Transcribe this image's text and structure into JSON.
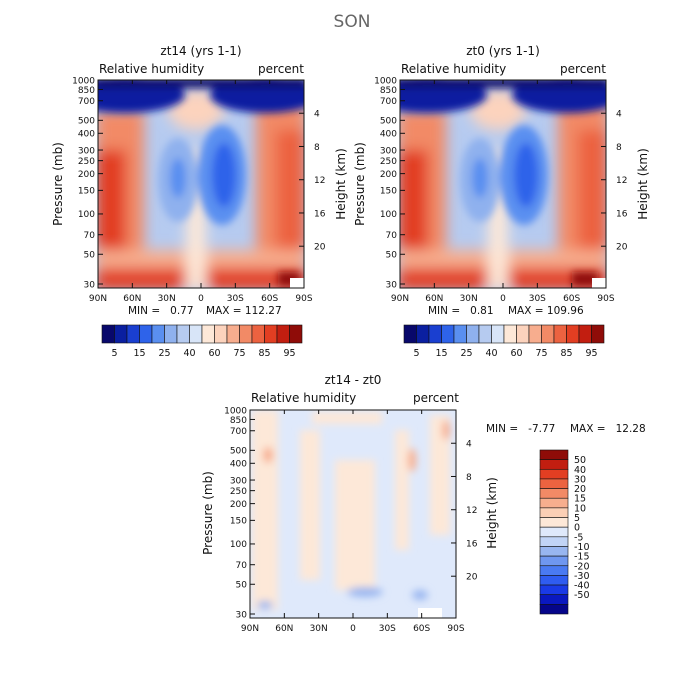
{
  "suptitle": "SON",
  "colors": {
    "blues": [
      "#08086b",
      "#0a1fa0",
      "#1a3fd0",
      "#2e63ea",
      "#5a8ff0",
      "#8fb1ee",
      "#b6cbf0",
      "#d8e5f8"
    ],
    "reds": [
      "#fde8d8",
      "#fcd3bd",
      "#f7ad8e",
      "#f28a66",
      "#ec6240",
      "#e23e22",
      "#c21e10",
      "#8f0c08"
    ],
    "diff_neg": [
      "#05058a",
      "#0a18c0",
      "#1a3ae6",
      "#2f5cf0",
      "#4a7af2",
      "#6f97f0",
      "#98b6f0",
      "#c1d4f6",
      "#dfe9fb"
    ],
    "diff_pos": [
      "#fde8d8",
      "#fbcfb5",
      "#f7ae8e",
      "#f28a66",
      "#ec6340",
      "#e23e22",
      "#c21e10",
      "#8f0c08"
    ]
  },
  "chart_data": [
    {
      "type": "heatmap",
      "title": "zt14 (yrs 1-1)",
      "left_label": "Relative humidity",
      "right_label": "percent",
      "ylabel": "Pressure (mb)",
      "ylabel_right": "Height (km)",
      "x_ticks": [
        "90N",
        "60N",
        "30N",
        "0",
        "30S",
        "60S",
        "90S"
      ],
      "y_ticks": [
        "1000",
        "850",
        "700",
        "500",
        "400",
        "300",
        "250",
        "200",
        "150",
        "100",
        "70",
        "50",
        "30"
      ],
      "height_ticks": [
        "4",
        "8",
        "12",
        "16",
        "20"
      ],
      "min_text": "MIN =   0.77",
      "max_text": "MAX = 112.27",
      "colorbar_labels": [
        "5",
        "15",
        "25",
        "40",
        "60",
        "75",
        "85",
        "95"
      ]
    },
    {
      "type": "heatmap",
      "title": "zt0 (yrs 1-1)",
      "left_label": "Relative humidity",
      "right_label": "percent",
      "ylabel": "Pressure (mb)",
      "ylabel_right": "Height (km)",
      "x_ticks": [
        "90N",
        "60N",
        "30N",
        "0",
        "30S",
        "60S",
        "90S"
      ],
      "y_ticks": [
        "1000",
        "850",
        "700",
        "500",
        "400",
        "300",
        "250",
        "200",
        "150",
        "100",
        "70",
        "50",
        "30"
      ],
      "height_ticks": [
        "4",
        "8",
        "12",
        "16",
        "20"
      ],
      "min_text": "MIN =   0.81",
      "max_text": "MAX = 109.96",
      "colorbar_labels": [
        "5",
        "15",
        "25",
        "40",
        "60",
        "75",
        "85",
        "95"
      ]
    },
    {
      "type": "heatmap",
      "title": "zt14 - zt0",
      "left_label": "Relative humidity",
      "right_label": "percent",
      "ylabel": "Pressure (mb)",
      "ylabel_right": "Height (km)",
      "x_ticks": [
        "90N",
        "60N",
        "30N",
        "0",
        "30S",
        "60S",
        "90S"
      ],
      "y_ticks": [
        "1000",
        "850",
        "700",
        "500",
        "400",
        "300",
        "250",
        "200",
        "150",
        "100",
        "70",
        "50",
        "30"
      ],
      "height_ticks": [
        "4",
        "8",
        "12",
        "16",
        "20"
      ],
      "min_text": "MIN =   -7.77",
      "max_text": "MAX =   12.28",
      "colorbar_labels": [
        "50",
        "40",
        "30",
        "20",
        "15",
        "10",
        "5",
        "0",
        "-5",
        "-10",
        "-15",
        "-20",
        "-30",
        "-40",
        "-50"
      ]
    }
  ]
}
